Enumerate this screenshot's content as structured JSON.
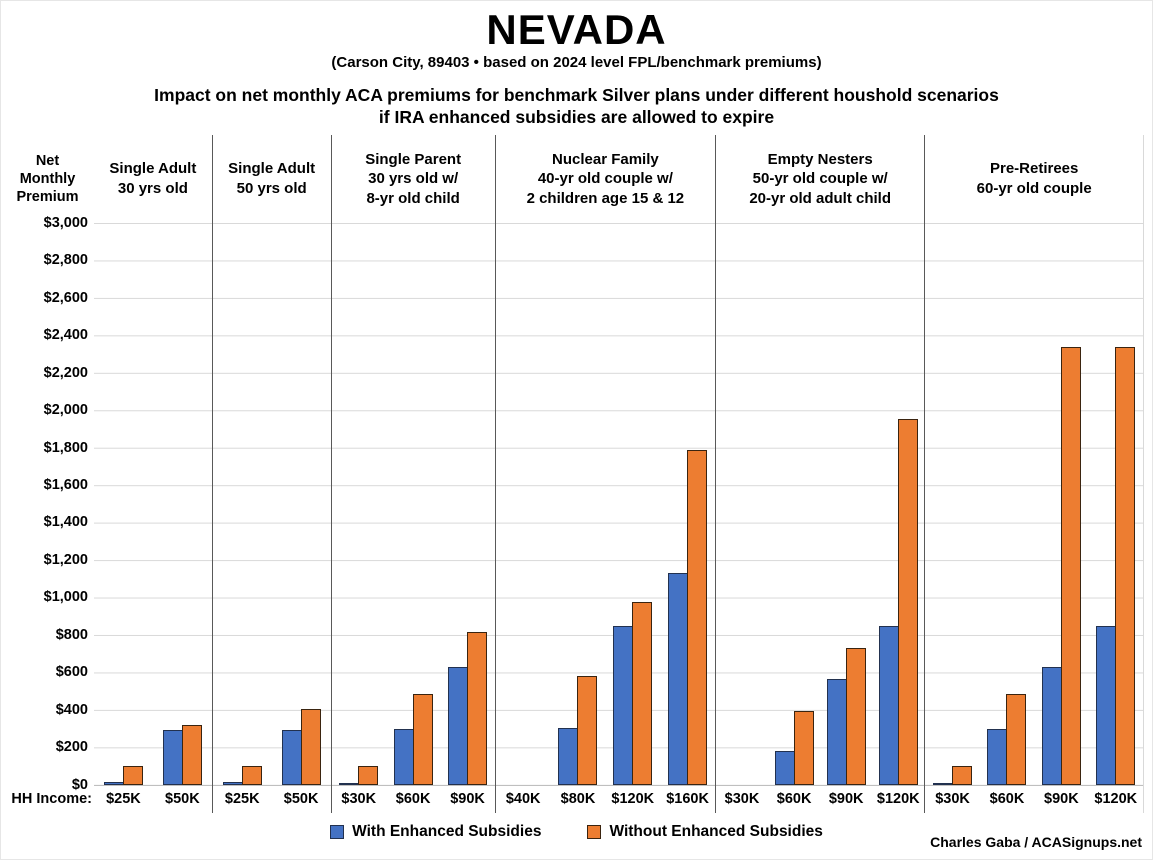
{
  "title": "NEVADA",
  "subtitle": "(Carson City, 89403 • based on 2024 level FPL/benchmark premiums)",
  "caption_line1": "Impact on net monthly ACA premiums for benchmark Silver plans under different houshold scenarios",
  "caption_line2": "if IRA enhanced subsidies are allowed to expire",
  "y_axis_title_lines": [
    "Net",
    "Monthly",
    "Premium"
  ],
  "hh_income_label": "HH Income:",
  "legend": {
    "with_label": "With Enhanced Subsidies",
    "without_label": "Without Enhanced Subsidies"
  },
  "credit": "Charles Gaba / ACASignups.net",
  "colors": {
    "with": "#4472C4",
    "without": "#ED7D31",
    "gridline": "#d9d9d9",
    "divider": "#595959"
  },
  "chart_data": {
    "type": "bar",
    "title": "Impact on net monthly ACA premiums for benchmark Silver plans under different houshold scenarios if IRA enhanced subsidies are allowed to expire",
    "ylabel": "Net Monthly Premium",
    "ylim": [
      0,
      3000
    ],
    "ytick_step": 200,
    "ytick_format": "$#,###",
    "grid": true,
    "legend_position": "bottom",
    "series_names": [
      "With Enhanced Subsidies",
      "Without Enhanced Subsidies"
    ],
    "groups": [
      {
        "label_lines": [
          "Single Adult",
          "30 yrs old"
        ],
        "incomes": [
          "$25K",
          "$50K"
        ],
        "with": [
          15,
          295
        ],
        "without": [
          100,
          320
        ]
      },
      {
        "label_lines": [
          "Single Adult",
          "50 yrs old"
        ],
        "incomes": [
          "$25K",
          "$50K"
        ],
        "with": [
          15,
          295
        ],
        "without": [
          100,
          405
        ]
      },
      {
        "label_lines": [
          "Single Parent",
          "30 yrs old w/",
          "8-yr old child"
        ],
        "incomes": [
          "$30K",
          "$60K",
          "$90K"
        ],
        "with": [
          10,
          300,
          630
        ],
        "without": [
          100,
          485,
          818
        ]
      },
      {
        "label_lines": [
          "Nuclear Family",
          "40-yr old couple w/",
          "2 children age 15 & 12"
        ],
        "incomes": [
          "$40K",
          "$80K",
          "$120K",
          "$160K"
        ],
        "with": [
          0,
          305,
          845,
          1130
        ],
        "without": [
          0,
          583,
          977,
          1785
        ]
      },
      {
        "label_lines": [
          "Empty Nesters",
          "50-yr old couple w/",
          "20-yr old adult child"
        ],
        "incomes": [
          "$30K",
          "$60K",
          "$90K",
          "$120K"
        ],
        "with": [
          0,
          180,
          562,
          847
        ],
        "without": [
          0,
          395,
          730,
          1950
        ]
      },
      {
        "label_lines": [
          "Pre-Retirees",
          "60-yr old couple"
        ],
        "incomes": [
          "$30K",
          "$60K",
          "$90K",
          "$120K"
        ],
        "with": [
          5,
          300,
          630,
          845
        ],
        "without": [
          100,
          485,
          2335,
          2335
        ]
      }
    ]
  }
}
